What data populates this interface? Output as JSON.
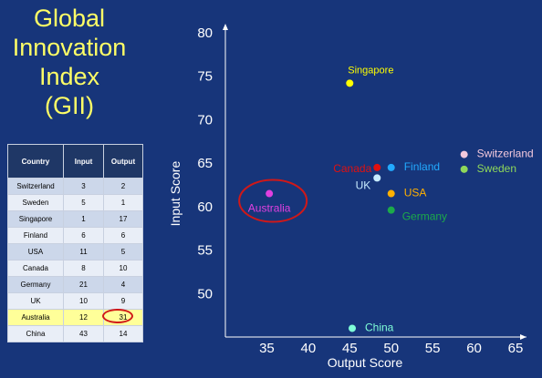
{
  "title_lines": [
    "Global",
    "Innovation",
    "Index",
    "(GII)"
  ],
  "table": {
    "headers": [
      "Country",
      "Input",
      "Output"
    ],
    "rows": [
      [
        "Switzerland",
        "3",
        "2"
      ],
      [
        "Sweden",
        "5",
        "1"
      ],
      [
        "Singapore",
        "1",
        "17"
      ],
      [
        "Finland",
        "6",
        "6"
      ],
      [
        "USA",
        "11",
        "5"
      ],
      [
        "Canada",
        "8",
        "10"
      ],
      [
        "Germany",
        "21",
        "4"
      ],
      [
        "UK",
        "10",
        "9"
      ],
      [
        "Australia",
        "12",
        "31"
      ],
      [
        "China",
        "43",
        "14"
      ]
    ],
    "highlight_row": "Australia"
  },
  "chart_data": {
    "type": "scatter",
    "xlabel": "Output Score",
    "ylabel": "Input Score",
    "xlim": [
      30,
      65
    ],
    "ylim": [
      45,
      80
    ],
    "xticks": [
      35,
      40,
      45,
      50,
      55,
      60,
      65
    ],
    "yticks": [
      50,
      55,
      60,
      65,
      70,
      75,
      80
    ],
    "grid": false,
    "points": [
      {
        "label": "Singapore",
        "x": 45,
        "y": 74.2,
        "color": "#ffff00",
        "label_pos": "above"
      },
      {
        "label": "Switzerland",
        "x": 58.8,
        "y": 66,
        "color": "#f2c8dc",
        "label_pos": "right"
      },
      {
        "label": "Sweden",
        "x": 58.8,
        "y": 64.3,
        "color": "#8fd85a",
        "label_pos": "right"
      },
      {
        "label": "Canada",
        "x": 48.3,
        "y": 64.5,
        "color": "#e01010",
        "label_pos": "left"
      },
      {
        "label": "Finland",
        "x": 50,
        "y": 64.5,
        "color": "#22aaff",
        "label_pos": "right"
      },
      {
        "label": "UK",
        "x": 48.3,
        "y": 63.3,
        "color": "#c8ecff",
        "label_pos": "below-left"
      },
      {
        "label": "USA",
        "x": 50,
        "y": 61.5,
        "color": "#ffb000",
        "label_pos": "right"
      },
      {
        "label": "Germany",
        "x": 50,
        "y": 59.6,
        "color": "#1caa4a",
        "label_pos": "below-right"
      },
      {
        "label": "Australia",
        "x": 35.3,
        "y": 61.5,
        "color": "#e040e0",
        "label_pos": "below",
        "highlighted": true
      },
      {
        "label": "China",
        "x": 45.3,
        "y": 46,
        "color": "#7fffd8",
        "label_pos": "right"
      }
    ]
  }
}
